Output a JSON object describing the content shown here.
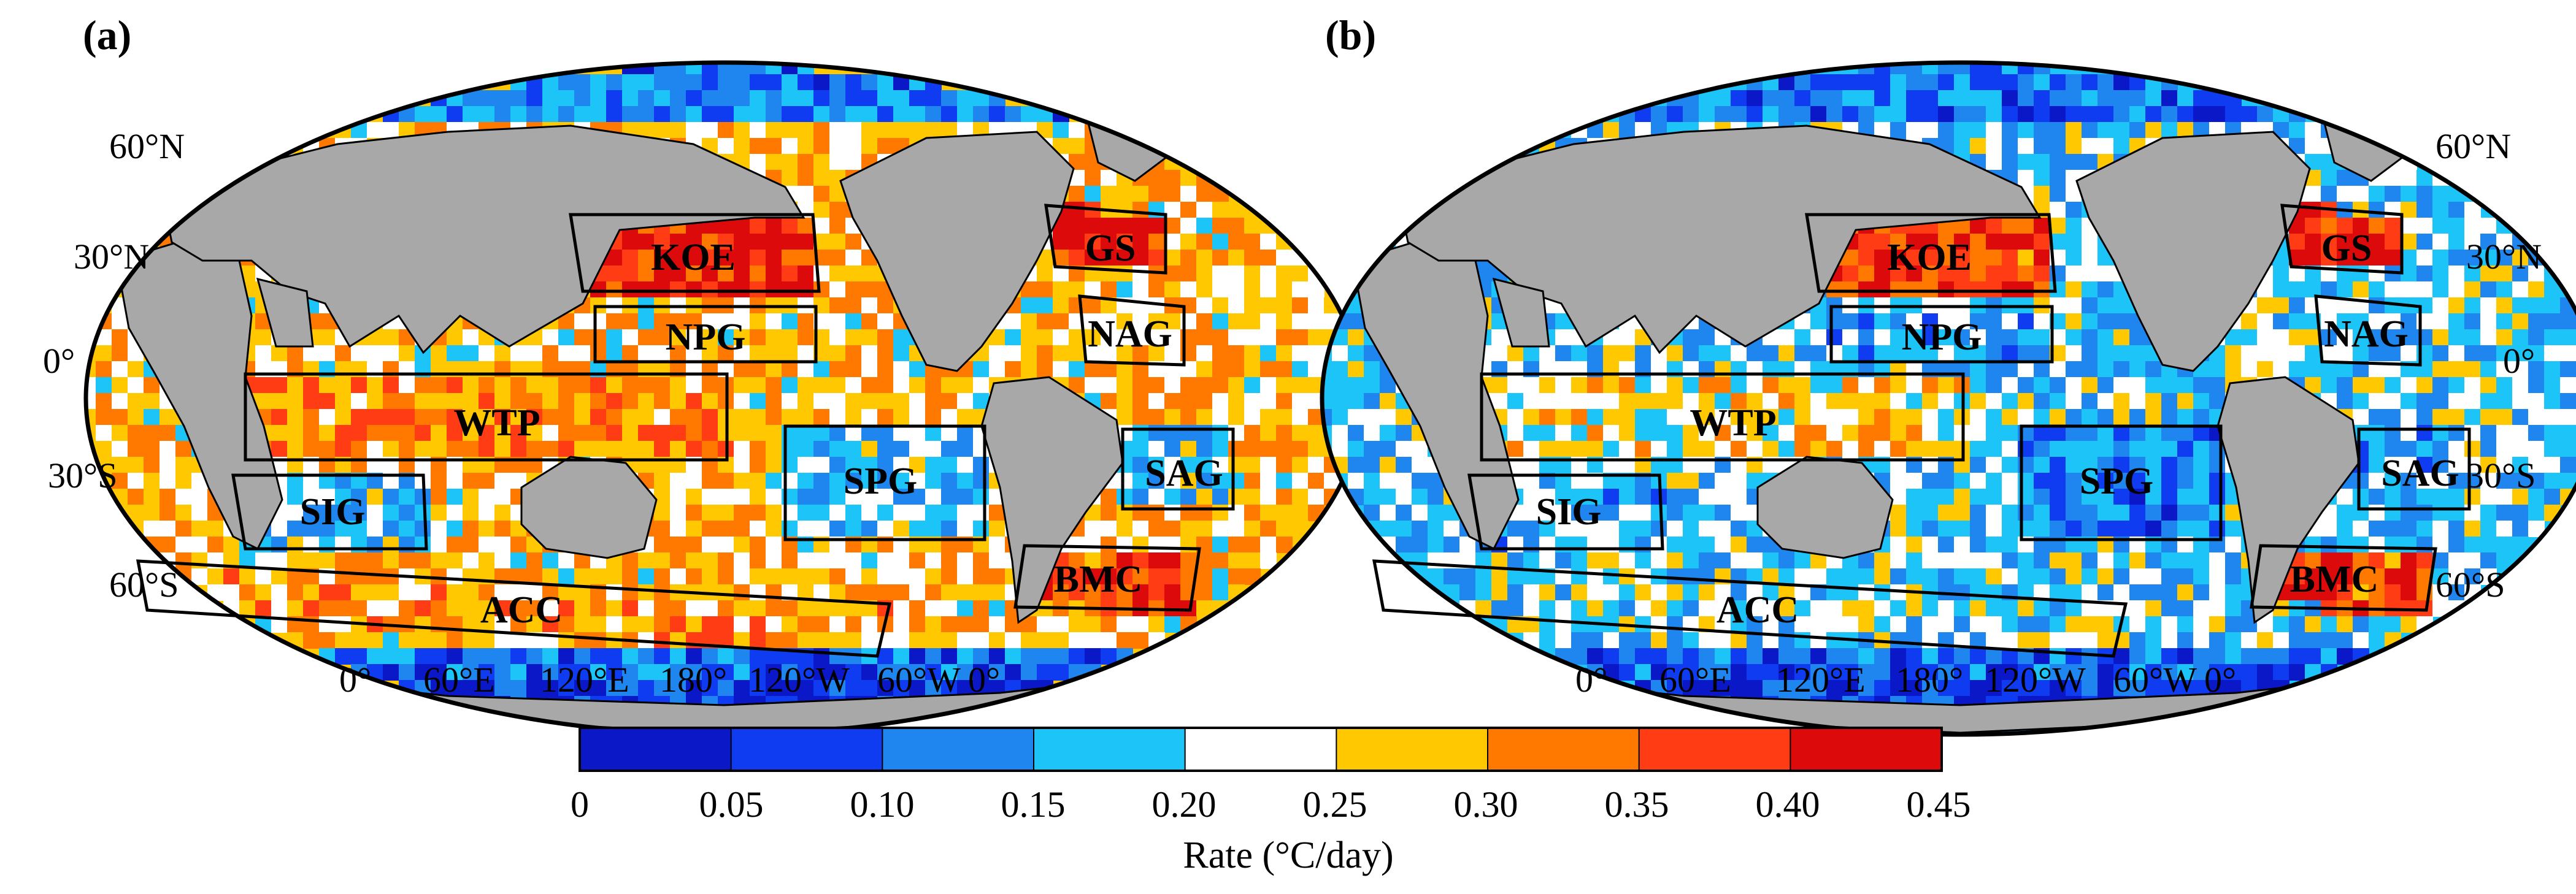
{
  "panels": [
    {
      "label": "(a)",
      "lat_labels_left": [
        "60°N",
        "30°N",
        "0°",
        "30°S",
        "60°S"
      ],
      "lon_labels": [
        "0°",
        "60°E",
        "120°E",
        "180°",
        "120°W",
        "60°W",
        "0°"
      ],
      "regions": [
        {
          "id": "KOE",
          "level": 0.4
        },
        {
          "id": "GS",
          "level": 0.4
        },
        {
          "id": "NPG",
          "level": 0.27
        },
        {
          "id": "NAG",
          "level": 0.27
        },
        {
          "id": "WTP",
          "level": 0.32
        },
        {
          "id": "SPG",
          "level": 0.18
        },
        {
          "id": "SAG",
          "level": 0.18
        },
        {
          "id": "SIG",
          "level": 0.18
        },
        {
          "id": "BMC",
          "level": 0.37
        },
        {
          "id": "ACC",
          "level": 0.3
        }
      ],
      "ocean_base": 0.27,
      "polar": 0.08
    },
    {
      "label": "(b)",
      "lat_labels_right": [
        "60°N",
        "30°N",
        "0°",
        "30°S",
        "60°S"
      ],
      "lon_labels": [
        "0°",
        "60°E",
        "120°E",
        "180°",
        "120°W",
        "60°W",
        "0°"
      ],
      "regions": [
        {
          "id": "KOE",
          "level": 0.37
        },
        {
          "id": "GS",
          "level": 0.4
        },
        {
          "id": "NPG",
          "level": 0.16
        },
        {
          "id": "NAG",
          "level": 0.17
        },
        {
          "id": "WTP",
          "level": 0.25
        },
        {
          "id": "SPG",
          "level": 0.12
        },
        {
          "id": "SAG",
          "level": 0.16
        },
        {
          "id": "SIG",
          "level": 0.17
        },
        {
          "id": "BMC",
          "level": 0.36
        },
        {
          "id": "ACC",
          "level": 0.2
        }
      ],
      "ocean_base": 0.19,
      "polar": 0.07
    }
  ],
  "colorbar": {
    "title": "Rate (°C/day)",
    "ticks": [
      "0",
      "0.05",
      "0.10",
      "0.15",
      "0.20",
      "0.25",
      "0.30",
      "0.35",
      "0.40",
      "0.45"
    ],
    "colors": [
      "#0a18c8",
      "#0f3cf0",
      "#1f86f0",
      "#1cc4f8",
      "#ffffff",
      "#ffc800",
      "#ff7800",
      "#ff3c14",
      "#dc0a0a"
    ]
  }
}
